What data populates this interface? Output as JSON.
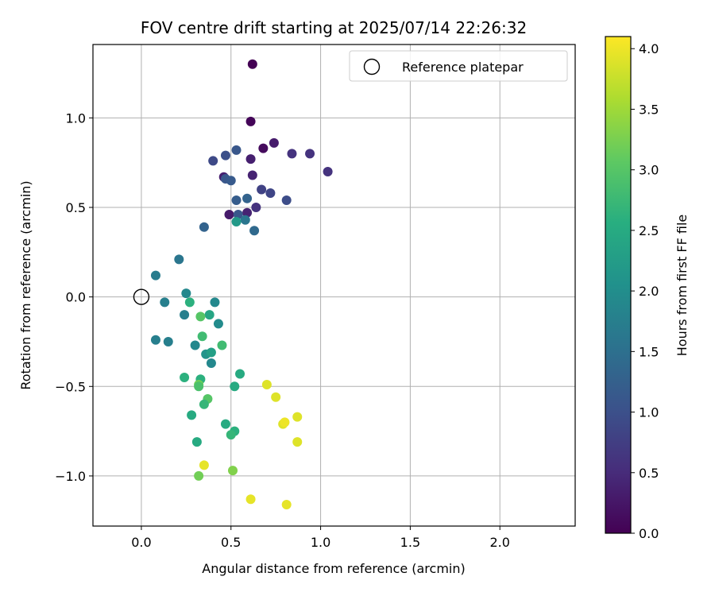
{
  "chart_data": {
    "type": "scatter",
    "title": "FOV centre drift starting at 2025/07/14 22:26:32",
    "xlabel": "Angular distance from reference (arcmin)",
    "ylabel": "Rotation from reference (arcmin)",
    "xlim": [
      -0.27,
      2.42
    ],
    "ylim": [
      -1.28,
      1.41
    ],
    "xticks": [
      0.0,
      0.5,
      1.0,
      1.5,
      2.0
    ],
    "xtick_labels": [
      "0.0",
      "0.5",
      "1.0",
      "1.5",
      "2.0"
    ],
    "yticks": [
      -1.0,
      -0.5,
      0.0,
      0.5,
      1.0
    ],
    "ytick_labels": [
      "−1.0",
      "−0.5",
      "0.0",
      "0.5",
      "1.0"
    ],
    "grid": true,
    "legend": {
      "position": "top-right",
      "entries": [
        {
          "label": "Reference platepar",
          "marker": "open-circle"
        }
      ]
    },
    "reference": {
      "x": 0.0,
      "y": 0.0
    },
    "colorbar": {
      "label": "Hours from first FF file",
      "range": [
        0.0,
        4.1
      ],
      "ticks": [
        0.0,
        0.5,
        1.0,
        1.5,
        2.0,
        2.5,
        3.0,
        3.5,
        4.0
      ],
      "tick_labels": [
        "0.0",
        "0.5",
        "1.0",
        "1.5",
        "2.0",
        "2.5",
        "3.0",
        "3.5",
        "4.0"
      ],
      "colormap": "viridis"
    },
    "points": [
      {
        "x": 0.62,
        "y": 1.3,
        "c": 0.0
      },
      {
        "x": 0.61,
        "y": 0.98,
        "c": 0.05
      },
      {
        "x": 0.68,
        "y": 0.83,
        "c": 0.12
      },
      {
        "x": 0.74,
        "y": 0.86,
        "c": 0.3
      },
      {
        "x": 0.61,
        "y": 0.77,
        "c": 0.35
      },
      {
        "x": 0.62,
        "y": 0.68,
        "c": 0.4
      },
      {
        "x": 0.46,
        "y": 0.67,
        "c": 0.35
      },
      {
        "x": 0.49,
        "y": 0.46,
        "c": 0.3
      },
      {
        "x": 0.59,
        "y": 0.47,
        "c": 0.4
      },
      {
        "x": 0.64,
        "y": 0.5,
        "c": 0.6
      },
      {
        "x": 0.84,
        "y": 0.8,
        "c": 0.6
      },
      {
        "x": 0.94,
        "y": 0.8,
        "c": 0.6
      },
      {
        "x": 1.04,
        "y": 0.7,
        "c": 0.6
      },
      {
        "x": 0.67,
        "y": 0.6,
        "c": 0.8
      },
      {
        "x": 0.72,
        "y": 0.58,
        "c": 0.85
      },
      {
        "x": 0.81,
        "y": 0.54,
        "c": 0.95
      },
      {
        "x": 0.4,
        "y": 0.76,
        "c": 0.9
      },
      {
        "x": 0.47,
        "y": 0.79,
        "c": 1.0
      },
      {
        "x": 0.53,
        "y": 0.82,
        "c": 1.1
      },
      {
        "x": 0.47,
        "y": 0.66,
        "c": 1.1
      },
      {
        "x": 0.5,
        "y": 0.65,
        "c": 1.15
      },
      {
        "x": 0.53,
        "y": 0.54,
        "c": 1.2
      },
      {
        "x": 0.59,
        "y": 0.55,
        "c": 1.3
      },
      {
        "x": 0.54,
        "y": 0.46,
        "c": 1.1
      },
      {
        "x": 0.35,
        "y": 0.39,
        "c": 1.3
      },
      {
        "x": 0.63,
        "y": 0.37,
        "c": 1.4
      },
      {
        "x": 0.58,
        "y": 0.43,
        "c": 1.6
      },
      {
        "x": 0.53,
        "y": 0.42,
        "c": 2.2
      },
      {
        "x": 0.21,
        "y": 0.21,
        "c": 1.6
      },
      {
        "x": 0.08,
        "y": 0.12,
        "c": 1.7
      },
      {
        "x": 0.25,
        "y": 0.02,
        "c": 1.9
      },
      {
        "x": 0.13,
        "y": -0.03,
        "c": 1.75
      },
      {
        "x": 0.41,
        "y": -0.03,
        "c": 1.9
      },
      {
        "x": 0.27,
        "y": -0.03,
        "c": 2.6
      },
      {
        "x": 0.24,
        "y": -0.1,
        "c": 1.75
      },
      {
        "x": 0.38,
        "y": -0.1,
        "c": 2.4
      },
      {
        "x": 0.33,
        "y": -0.11,
        "c": 3.0
      },
      {
        "x": 0.43,
        "y": -0.15,
        "c": 1.95
      },
      {
        "x": 0.08,
        "y": -0.24,
        "c": 1.75
      },
      {
        "x": 0.15,
        "y": -0.25,
        "c": 1.75
      },
      {
        "x": 0.3,
        "y": -0.27,
        "c": 1.9
      },
      {
        "x": 0.34,
        "y": -0.22,
        "c": 2.8
      },
      {
        "x": 0.45,
        "y": -0.27,
        "c": 2.8
      },
      {
        "x": 0.36,
        "y": -0.32,
        "c": 2.1
      },
      {
        "x": 0.39,
        "y": -0.31,
        "c": 2.3
      },
      {
        "x": 0.39,
        "y": -0.37,
        "c": 1.9
      },
      {
        "x": 0.55,
        "y": -0.43,
        "c": 2.5
      },
      {
        "x": 0.24,
        "y": -0.45,
        "c": 2.6
      },
      {
        "x": 0.33,
        "y": -0.46,
        "c": 2.6
      },
      {
        "x": 0.32,
        "y": -0.49,
        "c": 3.2
      },
      {
        "x": 0.32,
        "y": -0.5,
        "c": 2.9
      },
      {
        "x": 0.52,
        "y": -0.5,
        "c": 2.5
      },
      {
        "x": 0.37,
        "y": -0.57,
        "c": 3.0
      },
      {
        "x": 0.35,
        "y": -0.6,
        "c": 2.7
      },
      {
        "x": 0.28,
        "y": -0.66,
        "c": 2.5
      },
      {
        "x": 0.47,
        "y": -0.71,
        "c": 2.5
      },
      {
        "x": 0.52,
        "y": -0.75,
        "c": 2.6
      },
      {
        "x": 0.5,
        "y": -0.77,
        "c": 2.7
      },
      {
        "x": 0.31,
        "y": -0.81,
        "c": 2.5
      },
      {
        "x": 0.7,
        "y": -0.49,
        "c": 3.9
      },
      {
        "x": 0.75,
        "y": -0.56,
        "c": 3.9
      },
      {
        "x": 0.87,
        "y": -0.67,
        "c": 3.9
      },
      {
        "x": 0.79,
        "y": -0.71,
        "c": 3.9
      },
      {
        "x": 0.8,
        "y": -0.7,
        "c": 4.0
      },
      {
        "x": 0.87,
        "y": -0.81,
        "c": 3.9
      },
      {
        "x": 0.35,
        "y": -0.94,
        "c": 3.95
      },
      {
        "x": 0.32,
        "y": -1.0,
        "c": 3.2
      },
      {
        "x": 0.51,
        "y": -0.97,
        "c": 3.3
      },
      {
        "x": 0.61,
        "y": -1.13,
        "c": 3.95
      },
      {
        "x": 0.81,
        "y": -1.16,
        "c": 3.95
      }
    ]
  }
}
